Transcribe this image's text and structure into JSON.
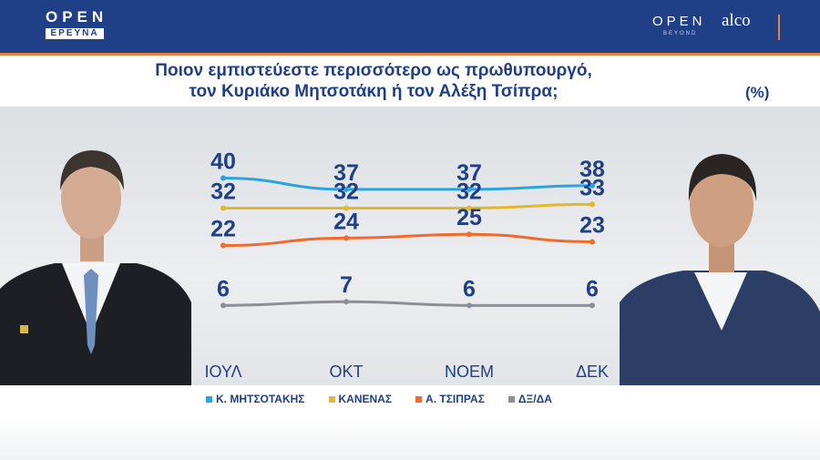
{
  "header": {
    "left_logo": {
      "word": "OPEN",
      "sub": "ΕΡΕΥΝΑ"
    },
    "right_logo": {
      "word": "OPEN",
      "sub": "BEYOND",
      "brand": "alco"
    }
  },
  "title_line1": "Ποιον εμπιστεύεστε περισσότερο ως πρωθυπουργό,",
  "title_line2": "τον Κυριάκο Μητσοτάκη ή τον Αλέξη Τσίπρα;",
  "unit": "(%)",
  "chart_data": {
    "type": "line",
    "title": "Ποιον εμπιστεύεστε περισσότερο ως πρωθυπουργό, τον Κυριάκο Μητσοτάκη ή τον Αλέξη Τσίπρα;",
    "unit": "(%)",
    "x": [
      "ΙΟΥΛ",
      "ΟΚΤ",
      "ΝΟΕΜ",
      "ΔΕΚ"
    ],
    "ylim": [
      0,
      45
    ],
    "grid": false,
    "legend_position": "bottom",
    "series": [
      {
        "name": "Κ. ΜΗΤΣΟΤΑΚΗΣ",
        "color": "#2aa4e0",
        "values": [
          40,
          37,
          37,
          38
        ]
      },
      {
        "name": "ΚΑΝΕΝΑΣ",
        "color": "#e3b72a",
        "values": [
          32,
          32,
          32,
          33
        ]
      },
      {
        "name": "Α. ΤΣΙΠΡΑΣ",
        "color": "#ee6b2d",
        "values": [
          22,
          24,
          25,
          23
        ]
      },
      {
        "name": "ΔΞ/ΔΑ",
        "color": "#8c8f94",
        "values": [
          6,
          7,
          6,
          6
        ]
      }
    ]
  }
}
